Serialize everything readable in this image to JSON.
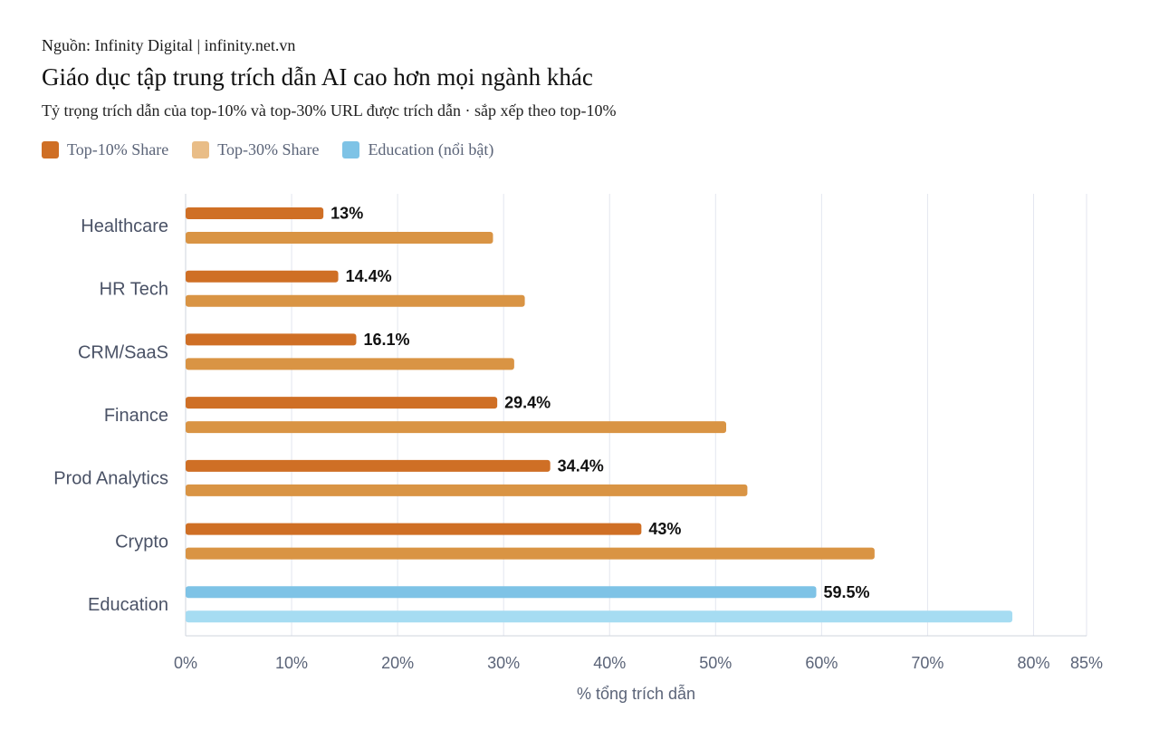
{
  "header": {
    "source": "Nguồn: Infinity Digital | infinity.net.vn",
    "title": "Giáo dục tập trung trích dẫn AI cao hơn mọi ngành khác",
    "subtitle": "Tỷ trọng trích dẫn của top-10% và top-30% URL được trích dẫn · sắp xếp theo top-10%"
  },
  "legend": [
    {
      "label": "Top-10% Share",
      "color": "#cf6f25"
    },
    {
      "label": "Top-30% Share",
      "color": "#e9bd87"
    },
    {
      "label": "Education (nổi bật)",
      "color": "#7ec3e6"
    }
  ],
  "chart_data": {
    "type": "bar",
    "orientation": "horizontal",
    "categories": [
      "Healthcare",
      "HR Tech",
      "CRM/SaaS",
      "Finance",
      "Prod Analytics",
      "Crypto",
      "Education"
    ],
    "series": [
      {
        "name": "Top-10% Share",
        "values": [
          13,
          14.4,
          16.1,
          29.4,
          34.4,
          43,
          59.5
        ]
      },
      {
        "name": "Top-30% Share",
        "values": [
          29,
          32,
          31,
          51,
          53,
          65,
          78
        ]
      }
    ],
    "data_labels": [
      "13%",
      "14.4%",
      "16.1%",
      "29.4%",
      "34.4%",
      "43%",
      "59.5%"
    ],
    "highlight_category": "Education",
    "xlabel": "% tổng trích dẫn",
    "ylabel": "",
    "xlim": [
      0,
      85
    ],
    "xticks": [
      0,
      10,
      20,
      30,
      40,
      50,
      60,
      70,
      80,
      85
    ],
    "xtick_labels": [
      "0%",
      "10%",
      "20%",
      "30%",
      "40%",
      "50%",
      "60%",
      "70%",
      "80%",
      "85%"
    ],
    "grid": true,
    "legend_position": "top-left",
    "colors": {
      "top10": "#cf6f25",
      "top30": "#d99444",
      "highlight_top10": "#7ec3e6",
      "highlight_top30": "#a6dcf2",
      "grid": "#e3e6ef",
      "axis_text": "#5b6478",
      "category_text": "#4a5266",
      "label_text": "#111111"
    }
  }
}
